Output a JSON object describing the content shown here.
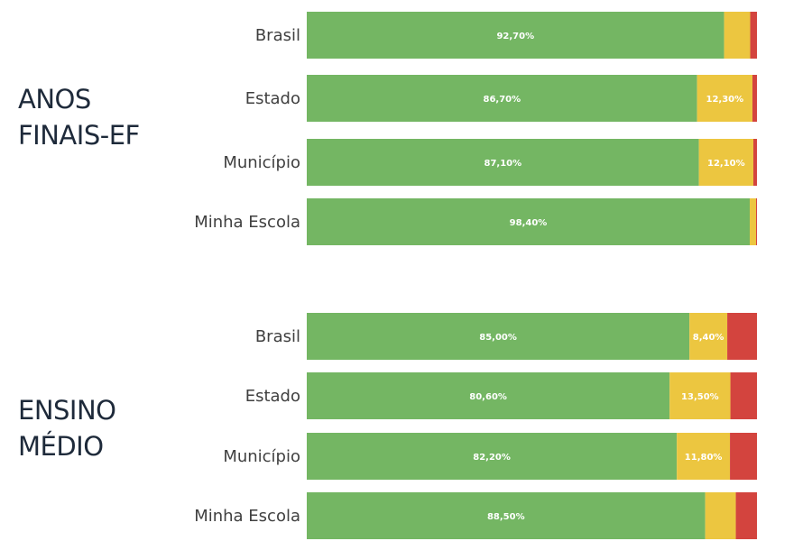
{
  "colors": {
    "green": "#74b663",
    "yellow": "#ecc640",
    "red": "#d3443e"
  },
  "chart_data": [
    {
      "type": "bar",
      "orientation": "horizontal",
      "stacked": "100%",
      "title": "ANOS\nFINAIS-EF",
      "categories": [
        "Brasil",
        "Estado",
        "Município",
        "Minha Escola"
      ],
      "series": [
        {
          "color": "#74b663",
          "values": [
            92.7,
            86.7,
            87.1,
            98.4
          ],
          "labels": [
            "92,70%",
            "86,70%",
            "87,10%",
            "98,40%"
          ]
        },
        {
          "color": "#ecc640",
          "values": [
            5.8,
            12.3,
            12.1,
            1.4
          ],
          "labels": [
            "",
            "12,30%",
            "12,10%",
            ""
          ]
        },
        {
          "color": "#d3443e",
          "values": [
            1.5,
            1.0,
            0.8,
            0.2
          ],
          "labels": [
            "",
            "",
            "",
            ""
          ]
        }
      ]
    },
    {
      "type": "bar",
      "orientation": "horizontal",
      "stacked": "100%",
      "title": "ENSINO\nMÉDIO",
      "categories": [
        "Brasil",
        "Estado",
        "Município",
        "Minha Escola"
      ],
      "series": [
        {
          "color": "#74b663",
          "values": [
            85.0,
            80.6,
            82.2,
            88.5
          ],
          "labels": [
            "85,00%",
            "80,60%",
            "82,20%",
            "88,50%"
          ]
        },
        {
          "color": "#ecc640",
          "values": [
            8.4,
            13.5,
            11.8,
            6.8
          ],
          "labels": [
            "8,40%",
            "13,50%",
            "11,80%",
            ""
          ]
        },
        {
          "color": "#d3443e",
          "values": [
            6.6,
            5.9,
            6.0,
            4.7
          ],
          "labels": [
            "",
            "",
            "",
            ""
          ]
        }
      ]
    }
  ]
}
